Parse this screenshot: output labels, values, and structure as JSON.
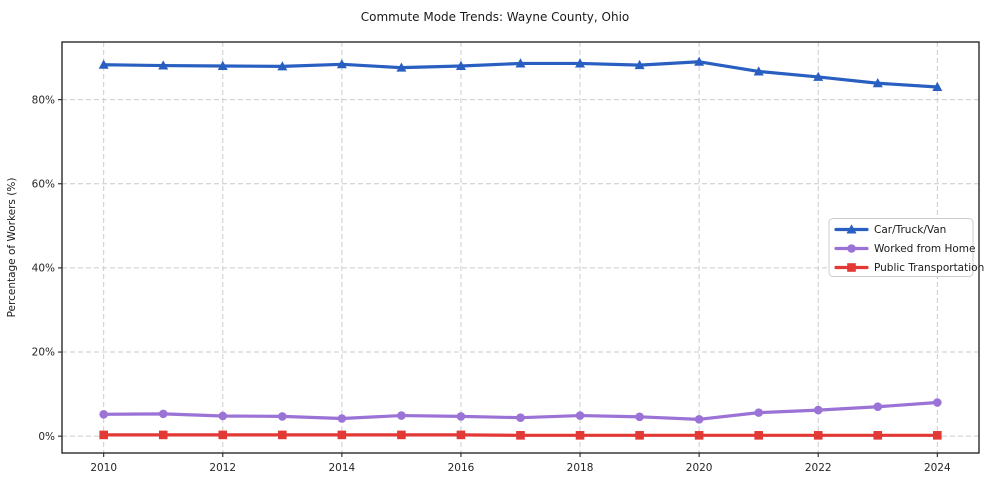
{
  "chart_data": {
    "type": "line",
    "title": "Commute Mode Trends: Wayne County, Ohio",
    "xlabel": "",
    "ylabel": "Percentage of Workers (%)",
    "x": [
      2010,
      2011,
      2012,
      2013,
      2014,
      2015,
      2016,
      2017,
      2018,
      2019,
      2020,
      2021,
      2022,
      2023,
      2024
    ],
    "xticks": [
      2010,
      2012,
      2014,
      2016,
      2018,
      2020,
      2022,
      2024
    ],
    "xtick_labels": [
      "2010",
      "2012",
      "2014",
      "2016",
      "2018",
      "2020",
      "2022",
      "2024"
    ],
    "yticks": [
      0,
      20,
      40,
      60,
      80
    ],
    "ytick_labels": [
      "0%",
      "20%",
      "40%",
      "60%",
      "80%"
    ],
    "xlim": [
      2009.3,
      2024.7
    ],
    "ylim": [
      -4.0,
      93.7
    ],
    "grid": true,
    "grid_style": "dashed",
    "legend": {
      "position": "middle-right",
      "entries": [
        "Car/Truck/Van",
        "Worked from Home",
        "Public Transportation"
      ]
    },
    "series": [
      {
        "name": "Car/Truck/Van",
        "marker": "triangle",
        "color": "#2a5fc2",
        "values": [
          88.3,
          88.1,
          88.0,
          87.9,
          88.4,
          87.6,
          88.0,
          88.6,
          88.6,
          88.2,
          89.0,
          86.7,
          85.4,
          83.9,
          83.0
        ]
      },
      {
        "name": "Worked from Home",
        "marker": "circle",
        "color": "#9b72d6",
        "values": [
          5.2,
          5.3,
          4.8,
          4.7,
          4.2,
          4.9,
          4.7,
          4.4,
          4.9,
          4.6,
          4.0,
          5.6,
          6.2,
          7.0,
          8.0
        ]
      },
      {
        "name": "Public Transportation",
        "marker": "square",
        "color": "#e23936",
        "values": [
          0.3,
          0.3,
          0.3,
          0.3,
          0.3,
          0.3,
          0.3,
          0.2,
          0.2,
          0.2,
          0.2,
          0.2,
          0.2,
          0.2,
          0.2
        ]
      }
    ],
    "colors": {
      "grid": "#cccccc",
      "axis_frame": "#1a1a1a",
      "tick_text": "#262626",
      "legend_border": "#cccccc",
      "background": "#ffffff"
    }
  }
}
